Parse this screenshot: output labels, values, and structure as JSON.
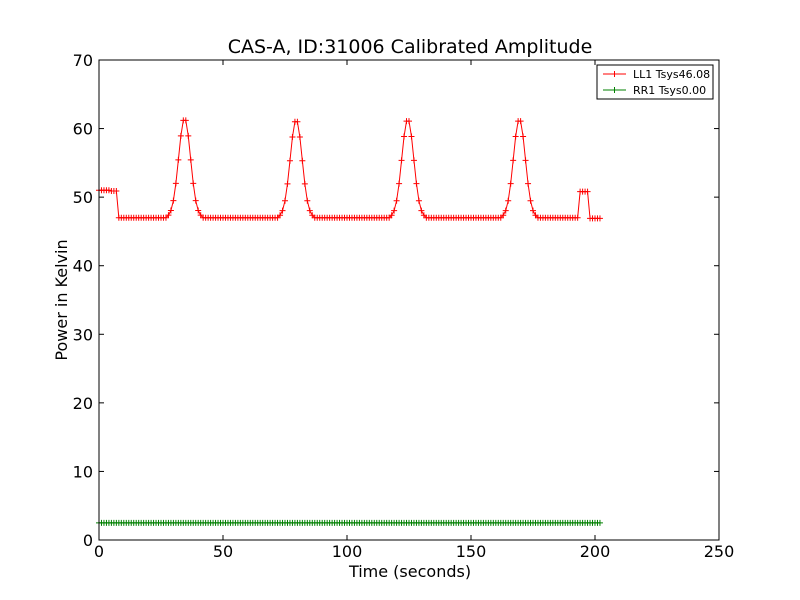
{
  "chart_data": {
    "type": "line",
    "title": "CAS-A, ID:31006 Calibrated Amplitude",
    "xlabel": "Time (seconds)",
    "ylabel": "Power in Kelvin",
    "xlim": [
      0,
      250
    ],
    "ylim": [
      0,
      70
    ],
    "xticks": [
      0,
      50,
      100,
      150,
      200,
      250
    ],
    "yticks": [
      0,
      10,
      20,
      30,
      40,
      50,
      60,
      70
    ],
    "grid": false,
    "legend_position": "top-right",
    "marker": "plus",
    "sample_interval": 1,
    "series": [
      {
        "name": "LL1 Tsys46.08",
        "color": "#ff0000",
        "segments": [
          {
            "start": 0,
            "end": 4,
            "value": 51.0
          },
          {
            "start": 5,
            "end": 7,
            "value": 50.9
          },
          {
            "start": 8,
            "end": 27,
            "value": 47.0
          },
          {
            "start": 28,
            "end": 41,
            "peak_x": 34.5,
            "peak": 61.5,
            "base": 47.0
          },
          {
            "start": 42,
            "end": 72,
            "value": 47.0
          },
          {
            "start": 73,
            "end": 86,
            "peak_x": 79.5,
            "peak": 61.3,
            "base": 47.0
          },
          {
            "start": 87,
            "end": 117,
            "value": 47.0
          },
          {
            "start": 118,
            "end": 131,
            "peak_x": 124.5,
            "peak": 61.4,
            "base": 47.0
          },
          {
            "start": 132,
            "end": 162,
            "value": 47.0
          },
          {
            "start": 163,
            "end": 176,
            "peak_x": 169.5,
            "peak": 61.4,
            "base": 47.0
          },
          {
            "start": 177,
            "end": 193,
            "value": 47.0
          },
          {
            "start": 194,
            "end": 197,
            "value": 50.8
          },
          {
            "start": 198,
            "end": 202,
            "value": 46.9
          }
        ]
      },
      {
        "name": "RR1 Tsys0.00",
        "color": "#008000",
        "segments": [
          {
            "start": 0,
            "end": 202,
            "value": 2.5
          }
        ]
      }
    ]
  }
}
